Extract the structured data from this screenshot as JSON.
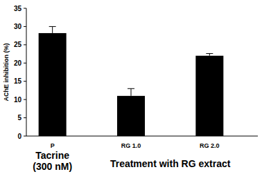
{
  "chart_data": {
    "type": "bar",
    "y_label": "AChE inhibition (%)",
    "categories": [
      "P",
      "RG 1.0",
      "RG 2.0"
    ],
    "values": [
      28.2,
      11.0,
      22.0
    ],
    "errors": [
      1.8,
      2.0,
      0.6
    ],
    "color": "#000000",
    "ylim": [
      0,
      35
    ],
    "yticks": [
      0,
      5,
      10,
      15,
      20,
      25,
      30,
      35
    ],
    "grid": false,
    "annotations": [
      "Tacrine",
      "(300 nM)",
      "Treatment with RG extract"
    ]
  }
}
